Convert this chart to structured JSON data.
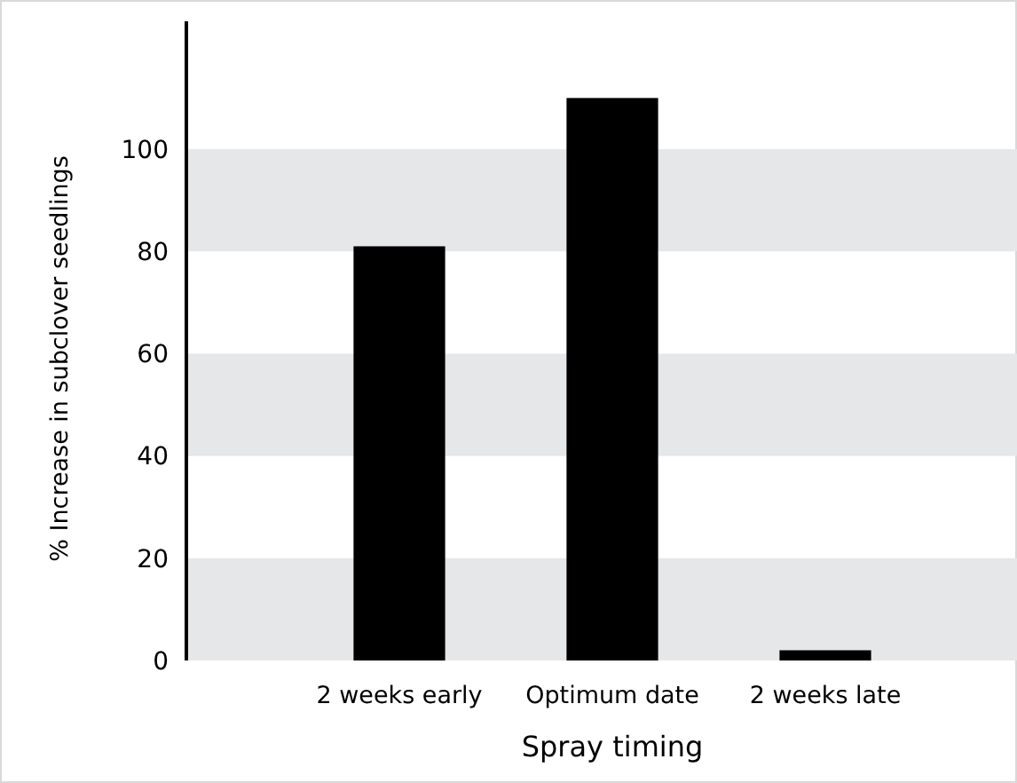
{
  "chart_data": {
    "type": "bar",
    "xlabel": "Spray timing",
    "ylabel": "% Increase in subclover seedlings",
    "categories": [
      "2 weeks early",
      "Optimum date",
      "2 weeks late"
    ],
    "values": [
      81,
      110,
      2
    ],
    "color": "#000000",
    "ylim": [
      0,
      125
    ],
    "yticks": [
      0,
      20,
      40,
      60,
      80,
      100
    ],
    "grid": false,
    "bands": [
      {
        "axis": "y",
        "from": 0,
        "to": 20,
        "color": "#e6e7e9"
      },
      {
        "axis": "y",
        "from": 40,
        "to": 60,
        "color": "#e6e7e9"
      },
      {
        "axis": "y",
        "from": 80,
        "to": 100,
        "color": "#e6e7e9"
      }
    ]
  }
}
